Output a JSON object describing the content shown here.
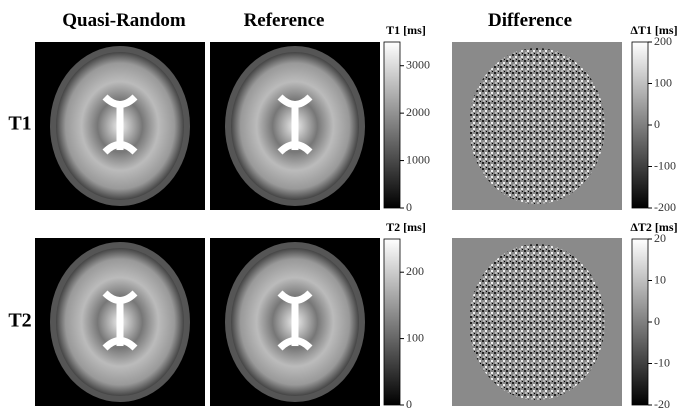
{
  "columns": [
    "Quasi-Random",
    "Reference",
    "Difference"
  ],
  "rows": [
    "T1",
    "T2"
  ],
  "colorbars": [
    {
      "title": "T1 [ms]",
      "lim": [
        0,
        3500
      ],
      "ticks": [
        0,
        1000,
        2000,
        3000
      ]
    },
    {
      "title": "ΔT1 [ms]",
      "lim": [
        -200,
        200
      ],
      "ticks": [
        -200,
        -100,
        0,
        100,
        200
      ]
    },
    {
      "title": "T2 [ms]",
      "lim": [
        0,
        250
      ],
      "ticks": [
        0,
        100,
        200
      ]
    },
    {
      "title": "ΔT2 [ms]",
      "lim": [
        -20,
        20
      ],
      "ticks": [
        -20,
        -10,
        0,
        10,
        20
      ]
    }
  ]
}
